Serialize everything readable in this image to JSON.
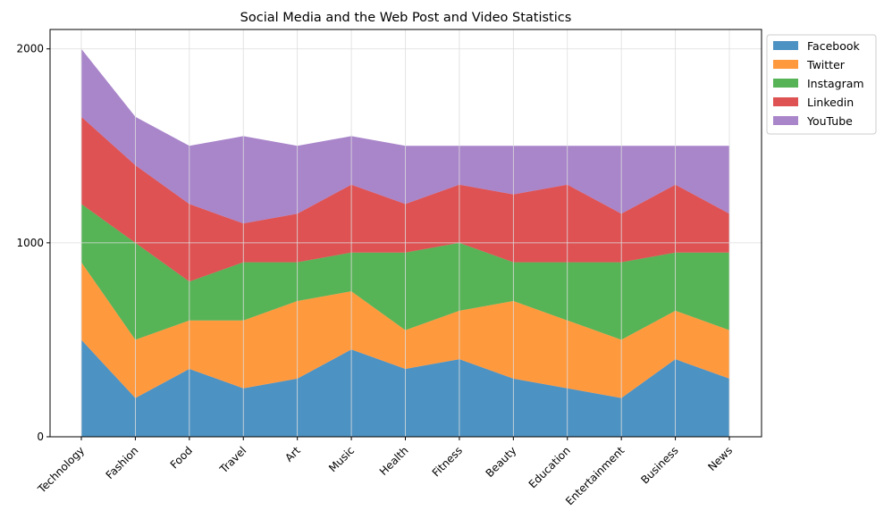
{
  "chart_data": {
    "type": "area",
    "stacked": true,
    "title": "Social Media and the Web Post and Video Statistics",
    "xlabel": "",
    "ylabel": "",
    "categories": [
      "Technology",
      "Fashion",
      "Food",
      "Travel",
      "Art",
      "Music",
      "Health",
      "Fitness",
      "Beauty",
      "Education",
      "Entertainment",
      "Business",
      "News"
    ],
    "series": [
      {
        "name": "Facebook",
        "color": "#1f77b4",
        "values": [
          500,
          200,
          350,
          250,
          300,
          450,
          350,
          400,
          300,
          250,
          200,
          400,
          300
        ]
      },
      {
        "name": "Twitter",
        "color": "#ff7f0e",
        "values": [
          400,
          300,
          250,
          350,
          400,
          300,
          200,
          250,
          400,
          350,
          300,
          250,
          250
        ]
      },
      {
        "name": "Instagram",
        "color": "#2ca02c",
        "values": [
          300,
          500,
          200,
          300,
          200,
          200,
          400,
          350,
          200,
          300,
          400,
          300,
          400
        ]
      },
      {
        "name": "Linkedin",
        "color": "#d62728",
        "values": [
          450,
          400,
          400,
          200,
          250,
          350,
          250,
          300,
          350,
          400,
          250,
          350,
          200
        ]
      },
      {
        "name": "YouTube",
        "color": "#9467bd",
        "values": [
          350,
          250,
          300,
          450,
          350,
          250,
          300,
          200,
          250,
          200,
          350,
          200,
          350
        ]
      }
    ],
    "yticks": [
      0,
      1000,
      2000
    ],
    "ylim": [
      0,
      2100
    ],
    "grid": true,
    "legend": "outside-top-right"
  }
}
